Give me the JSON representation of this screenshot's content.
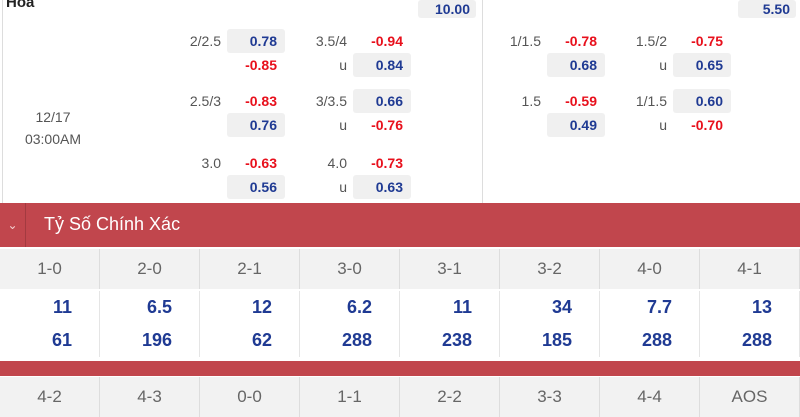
{
  "top": {
    "label": "Hòa",
    "left_value": "10.00",
    "right_value": "5.50"
  },
  "time": {
    "date": "12/17",
    "clock": "03:00AM"
  },
  "left_panel": [
    {
      "l1": "2/2.5",
      "a": "0.78",
      "b": "-0.85",
      "l2": "3.5/4",
      "c": "-0.94",
      "u": "u",
      "d": "0.84"
    },
    {
      "l1": "2.5/3",
      "a": "-0.83",
      "b": "0.76",
      "l2": "3/3.5",
      "c": "0.66",
      "u": "u",
      "d": "-0.76"
    },
    {
      "l1": "3.0",
      "a": "-0.63",
      "b": "0.56",
      "l2": "4.0",
      "c": "-0.73",
      "u": "u",
      "d": "0.63"
    }
  ],
  "right_panel": [
    {
      "l1": "1/1.5",
      "a": "-0.78",
      "b": "0.68",
      "l2": "1.5/2",
      "c": "-0.75",
      "u": "u",
      "d": "0.65"
    },
    {
      "l1": "1.5",
      "a": "-0.59",
      "b": "0.49",
      "l2": "1/1.5",
      "c": "0.60",
      "u": "u",
      "d": "-0.70"
    }
  ],
  "section": {
    "title": "Tỷ Số Chính Xác",
    "chevron_icon": "chevron-down-icon"
  },
  "scores": [
    "1-0",
    "2-0",
    "2-1",
    "3-0",
    "3-1",
    "3-2",
    "4-0",
    "4-1"
  ],
  "odds_row1": [
    "11",
    "6.5",
    "12",
    "6.2",
    "11",
    "34",
    "7.7",
    "13"
  ],
  "odds_row2": [
    "61",
    "196",
    "62",
    "288",
    "238",
    "185",
    "288",
    "288"
  ],
  "scores2": [
    "4-2",
    "4-3",
    "0-0",
    "1-1",
    "2-2",
    "3-3",
    "4-4",
    "AOS"
  ],
  "colors": {
    "header": "#c1464d",
    "positive": "#1f3a93",
    "negative": "#e8101c"
  }
}
